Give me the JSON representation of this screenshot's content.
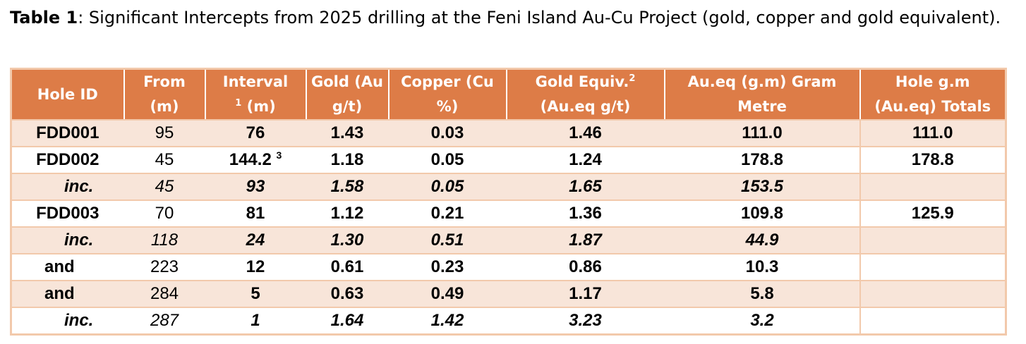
{
  "caption": {
    "label": "Table 1",
    "text": ": Significant Intercepts from 2025 drilling at the Feni Island Au-Cu Project (gold, copper and gold equivalent)."
  },
  "headers": {
    "hole_id": "Hole ID",
    "from": "From (m)",
    "interval_sup": "1",
    "interval_pre": "Interval",
    "interval_post": "(m)",
    "gold": "Gold (Au g/t)",
    "copper": "Copper (Cu %)",
    "gold_equiv_pre": "Gold Equiv.",
    "gold_equiv_sup": "2",
    "gold_equiv_post": "(Au.eq g/t)",
    "gram_metre": "Au.eq (g.m) Gram Metre",
    "totals": "Hole g.m (Au.eq) Totals"
  },
  "rows": [
    {
      "hole": "FDD001",
      "from": "95",
      "interval": "76",
      "interval_sup": "",
      "gold": "1.43",
      "copper": "0.03",
      "au_eq": "1.46",
      "gm": "111.0",
      "total": "111.0"
    },
    {
      "hole": "FDD002",
      "from": "45",
      "interval": "144.2",
      "interval_sup": "3",
      "gold": "1.18",
      "copper": "0.05",
      "au_eq": "1.24",
      "gm": "178.8",
      "total": "178.8"
    },
    {
      "hole": "inc.",
      "from": "45",
      "interval": "93",
      "interval_sup": "",
      "gold": "1.58",
      "copper": "0.05",
      "au_eq": "1.65",
      "gm": "153.5",
      "total": ""
    },
    {
      "hole": "FDD003",
      "from": "70",
      "interval": "81",
      "interval_sup": "",
      "gold": "1.12",
      "copper": "0.21",
      "au_eq": "1.36",
      "gm": "109.8",
      "total": "125.9"
    },
    {
      "hole": "inc.",
      "from": "118",
      "interval": "24",
      "interval_sup": "",
      "gold": "1.30",
      "copper": "0.51",
      "au_eq": "1.87",
      "gm": "44.9",
      "total": ""
    },
    {
      "hole": "and",
      "from": "223",
      "interval": "12",
      "interval_sup": "",
      "gold": "0.61",
      "copper": "0.23",
      "au_eq": "0.86",
      "gm": "10.3",
      "total": ""
    },
    {
      "hole": "and",
      "from": "284",
      "interval": "5",
      "interval_sup": "",
      "gold": "0.63",
      "copper": "0.49",
      "au_eq": "1.17",
      "gm": "5.8",
      "total": ""
    },
    {
      "hole": "inc.",
      "from": "287",
      "interval": "1",
      "interval_sup": "",
      "gold": "1.64",
      "copper": "1.42",
      "au_eq": "3.23",
      "gm": "3.2",
      "total": ""
    }
  ],
  "colors": {
    "header_bg": "#dd7c47",
    "shaded_row": "#f8e5d9",
    "border": "#f2c9ab"
  }
}
